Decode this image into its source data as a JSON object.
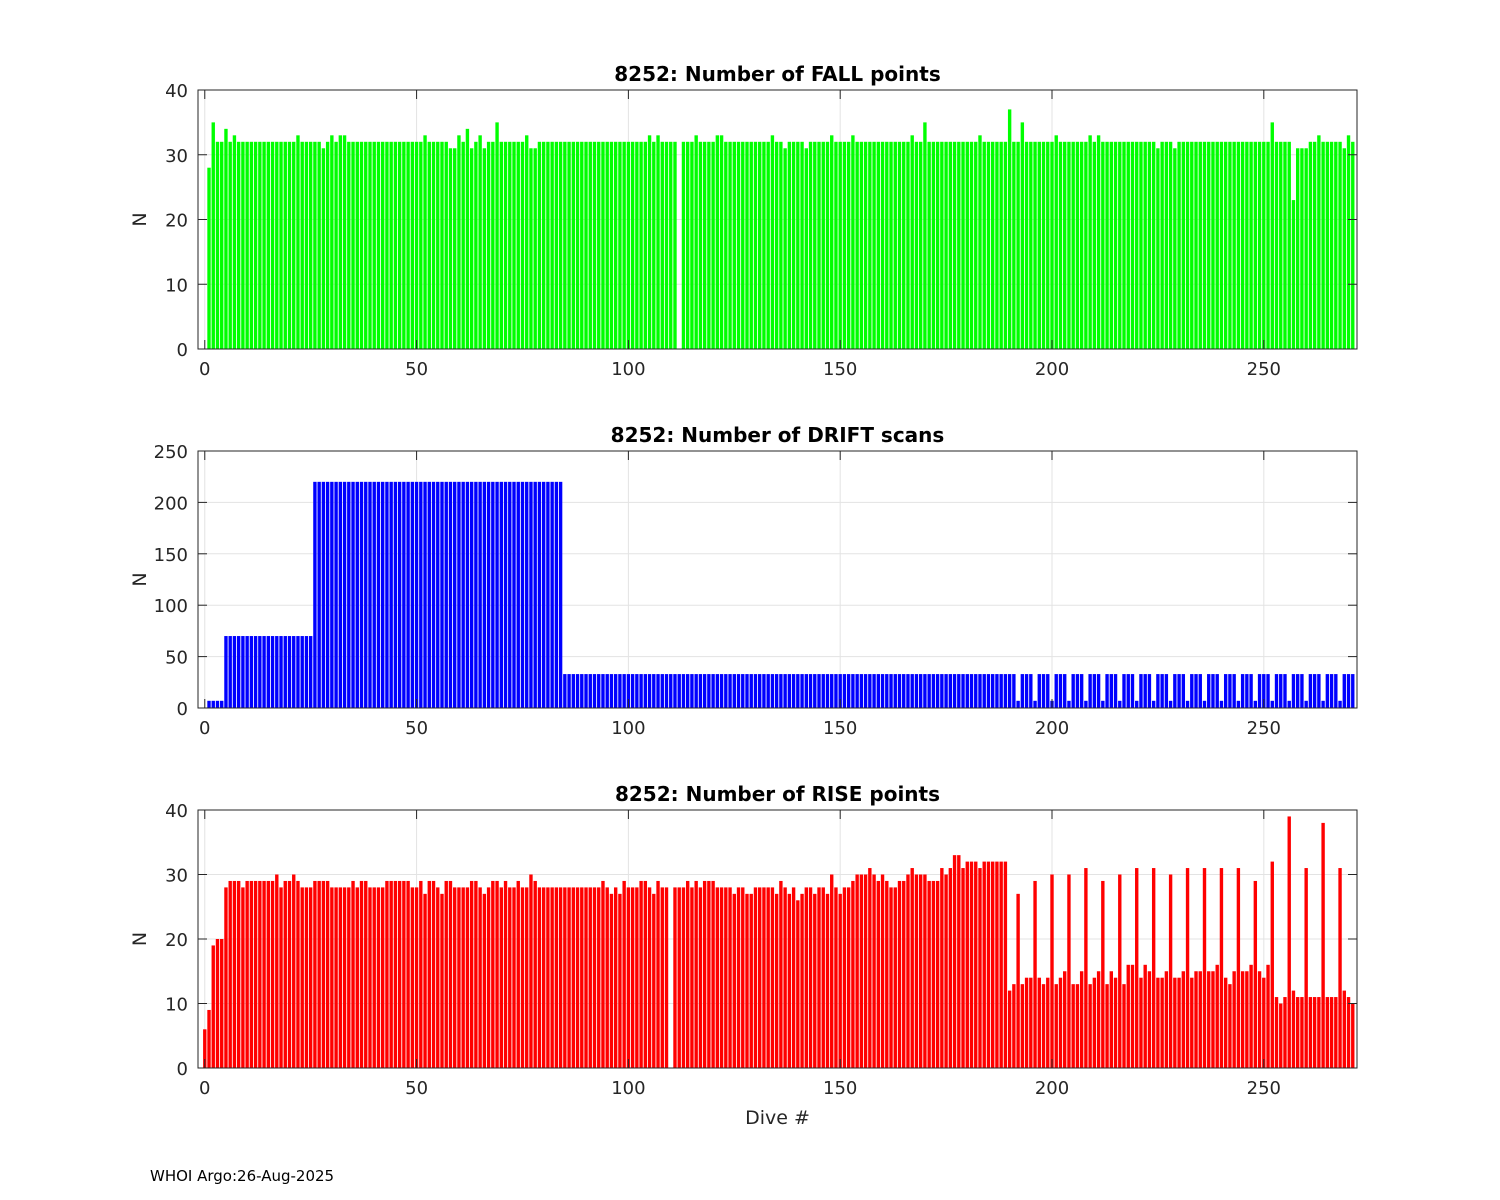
{
  "footer": "WHOI Argo:26-Aug-2025",
  "chart_data": [
    {
      "type": "bar",
      "title": "8252: Number of FALL points",
      "xlabel": "",
      "ylabel": "N",
      "color": "#00ff00",
      "x_start": 0,
      "xlim": [
        -1.6,
        272
      ],
      "ylim": [
        0,
        40
      ],
      "xticks": [
        0,
        50,
        100,
        150,
        200,
        250
      ],
      "yticks": [
        0,
        10,
        20,
        30,
        40
      ],
      "grid": true,
      "values": [
        0,
        28,
        35,
        32,
        32,
        34,
        32,
        33,
        32,
        32,
        32,
        32,
        32,
        32,
        32,
        32,
        32,
        32,
        32,
        32,
        32,
        32,
        33,
        32,
        32,
        32,
        32,
        32,
        31,
        32,
        33,
        32,
        33,
        33,
        32,
        32,
        32,
        32,
        32,
        32,
        32,
        32,
        32,
        32,
        32,
        32,
        32,
        32,
        32,
        32,
        32,
        32,
        33,
        32,
        32,
        32,
        32,
        32,
        31,
        31,
        33,
        32,
        34,
        31,
        32,
        33,
        31,
        32,
        32,
        35,
        32,
        32,
        32,
        32,
        32,
        32,
        33,
        31,
        31,
        32,
        32,
        32,
        32,
        32,
        32,
        32,
        32,
        32,
        32,
        32,
        32,
        32,
        32,
        32,
        32,
        32,
        32,
        32,
        32,
        32,
        32,
        32,
        32,
        32,
        32,
        33,
        32,
        33,
        32,
        32,
        32,
        32,
        0,
        32,
        32,
        32,
        33,
        32,
        32,
        32,
        32,
        33,
        33,
        32,
        32,
        32,
        32,
        32,
        32,
        32,
        32,
        32,
        32,
        32,
        33,
        32,
        32,
        31,
        32,
        32,
        32,
        32,
        31,
        32,
        32,
        32,
        32,
        32,
        33,
        32,
        32,
        32,
        32,
        33,
        32,
        32,
        32,
        32,
        32,
        32,
        32,
        32,
        32,
        32,
        32,
        32,
        32,
        33,
        32,
        32,
        35,
        32,
        32,
        32,
        32,
        32,
        32,
        32,
        32,
        32,
        32,
        32,
        32,
        33,
        32,
        32,
        32,
        32,
        32,
        32,
        37,
        32,
        32,
        35,
        32,
        32,
        32,
        32,
        32,
        32,
        32,
        33,
        32,
        32,
        32,
        32,
        32,
        32,
        32,
        33,
        32,
        33,
        32,
        32,
        32,
        32,
        32,
        32,
        32,
        32,
        32,
        32,
        32,
        32,
        32,
        31,
        32,
        32,
        32,
        31,
        32,
        32,
        32,
        32,
        32,
        32,
        32,
        32,
        32,
        32,
        32,
        32,
        32,
        32,
        32,
        32,
        32,
        32,
        32,
        32,
        32,
        32,
        35,
        32,
        32,
        32,
        32,
        23,
        31,
        31,
        31,
        32,
        32,
        33,
        32,
        32,
        32,
        32,
        32,
        31,
        33,
        32
      ]
    },
    {
      "type": "bar",
      "title": "8252: Number of DRIFT scans",
      "xlabel": "",
      "ylabel": "N",
      "color": "#0000ff",
      "x_start": 0,
      "xlim": [
        -1.6,
        272
      ],
      "ylim": [
        0,
        250
      ],
      "xticks": [
        0,
        50,
        100,
        150,
        200,
        250
      ],
      "yticks": [
        0,
        50,
        100,
        150,
        200,
        250
      ],
      "grid": true,
      "values": [
        0,
        7,
        7,
        7,
        7,
        70,
        70,
        70,
        70,
        70,
        70,
        70,
        70,
        70,
        70,
        70,
        70,
        70,
        70,
        70,
        70,
        70,
        70,
        70,
        70,
        70,
        220,
        220,
        220,
        220,
        220,
        220,
        220,
        220,
        220,
        220,
        220,
        220,
        220,
        220,
        220,
        220,
        220,
        220,
        220,
        220,
        220,
        220,
        220,
        220,
        220,
        220,
        220,
        220,
        220,
        220,
        220,
        220,
        220,
        220,
        220,
        220,
        220,
        220,
        220,
        220,
        220,
        220,
        220,
        220,
        220,
        220,
        220,
        220,
        220,
        220,
        220,
        220,
        220,
        220,
        220,
        220,
        220,
        220,
        220,
        33,
        33,
        33,
        33,
        33,
        33,
        33,
        33,
        33,
        33,
        33,
        33,
        33,
        33,
        33,
        33,
        33,
        33,
        33,
        33,
        33,
        33,
        33,
        33,
        33,
        33,
        33,
        33,
        33,
        33,
        33,
        33,
        33,
        33,
        33,
        33,
        33,
        33,
        33,
        33,
        33,
        33,
        33,
        33,
        33,
        33,
        33,
        33,
        33,
        33,
        33,
        33,
        33,
        33,
        33,
        33,
        33,
        33,
        33,
        33,
        33,
        33,
        33,
        33,
        33,
        33,
        33,
        33,
        33,
        33,
        33,
        33,
        33,
        33,
        33,
        33,
        33,
        33,
        33,
        33,
        33,
        33,
        33,
        33,
        33,
        33,
        33,
        33,
        33,
        33,
        33,
        33,
        33,
        33,
        33,
        33,
        33,
        33,
        33,
        33,
        33,
        33,
        33,
        33,
        33,
        33,
        33,
        7,
        33,
        33,
        33,
        7,
        33,
        33,
        33,
        7,
        33,
        33,
        33,
        7,
        33,
        33,
        33,
        7,
        33,
        33,
        33,
        7,
        33,
        33,
        33,
        7,
        33,
        33,
        33,
        7,
        33,
        33,
        33,
        7,
        33,
        33,
        33,
        7,
        33,
        33,
        33,
        7,
        33,
        33,
        33,
        7,
        33,
        33,
        33,
        7,
        33,
        33,
        33,
        7,
        33,
        33,
        33,
        7,
        33,
        33,
        33,
        7,
        33,
        33,
        33,
        7,
        33,
        33,
        33,
        7,
        33,
        33,
        33,
        7,
        33,
        33,
        33,
        7,
        33,
        33,
        33
      ]
    },
    {
      "type": "bar",
      "title": "8252: Number of RISE points",
      "xlabel": "Dive #",
      "ylabel": "N",
      "color": "#ff0000",
      "x_start": 0,
      "xlim": [
        -1.6,
        272
      ],
      "ylim": [
        0,
        40
      ],
      "xticks": [
        0,
        50,
        100,
        150,
        200,
        250
      ],
      "yticks": [
        0,
        10,
        20,
        30,
        40
      ],
      "grid": true,
      "values": [
        6,
        9,
        19,
        20,
        20,
        28,
        29,
        29,
        29,
        28,
        29,
        29,
        29,
        29,
        29,
        29,
        29,
        30,
        28,
        29,
        29,
        30,
        29,
        28,
        28,
        28,
        29,
        29,
        29,
        29,
        28,
        28,
        28,
        28,
        28,
        29,
        28,
        29,
        29,
        28,
        28,
        28,
        28,
        29,
        29,
        29,
        29,
        29,
        29,
        28,
        28,
        29,
        27,
        29,
        29,
        28,
        27,
        29,
        29,
        28,
        28,
        28,
        28,
        29,
        29,
        28,
        27,
        28,
        29,
        29,
        28,
        29,
        28,
        28,
        29,
        28,
        28,
        30,
        29,
        28,
        28,
        28,
        28,
        28,
        28,
        28,
        28,
        28,
        28,
        28,
        28,
        28,
        28,
        28,
        29,
        28,
        27,
        28,
        27,
        29,
        28,
        28,
        28,
        29,
        29,
        28,
        27,
        29,
        28,
        28,
        0,
        28,
        28,
        28,
        29,
        28,
        29,
        28,
        29,
        29,
        29,
        28,
        28,
        28,
        28,
        27,
        28,
        28,
        27,
        27,
        28,
        28,
        28,
        28,
        28,
        27,
        29,
        28,
        27,
        28,
        26,
        27,
        28,
        28,
        27,
        28,
        28,
        27,
        30,
        28,
        27,
        28,
        28,
        29,
        30,
        30,
        30,
        31,
        30,
        29,
        30,
        29,
        28,
        28,
        29,
        29,
        30,
        31,
        30,
        30,
        30,
        29,
        29,
        29,
        31,
        30,
        31,
        33,
        33,
        31,
        32,
        32,
        32,
        31,
        32,
        32,
        32,
        32,
        32,
        32,
        12,
        13,
        27,
        13,
        14,
        14,
        29,
        14,
        13,
        14,
        30,
        13,
        14,
        15,
        30,
        13,
        13,
        15,
        31,
        13,
        14,
        15,
        29,
        13,
        15,
        14,
        30,
        13,
        16,
        16,
        31,
        14,
        16,
        15,
        31,
        14,
        14,
        15,
        30,
        14,
        14,
        15,
        31,
        14,
        15,
        15,
        31,
        15,
        15,
        16,
        31,
        14,
        13,
        15,
        31,
        15,
        15,
        16,
        29,
        15,
        14,
        16,
        32,
        11,
        10,
        11,
        39,
        12,
        11,
        11,
        31,
        11,
        11,
        11,
        38,
        11,
        11,
        11,
        31,
        12,
        11,
        10
      ]
    }
  ]
}
